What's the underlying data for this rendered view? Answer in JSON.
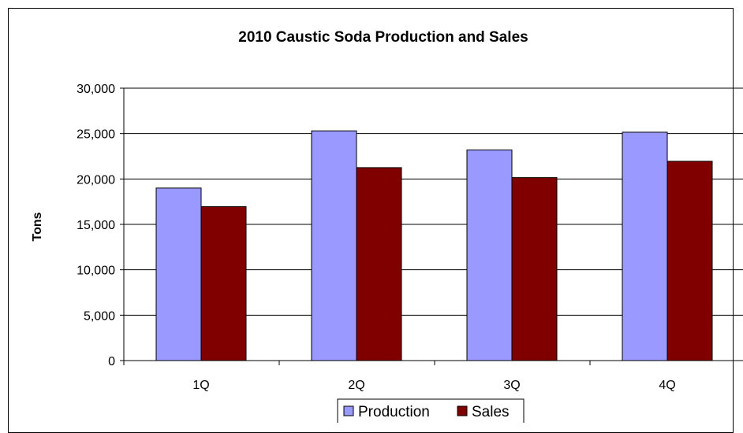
{
  "chart_data": {
    "type": "bar",
    "title": "2010 Caustic Soda Production and Sales",
    "xlabel": "",
    "ylabel": "Tons",
    "categories": [
      "1Q",
      "2Q",
      "3Q",
      "4Q"
    ],
    "series": [
      {
        "name": "Production",
        "values": [
          19000,
          25300,
          23200,
          25150
        ],
        "color": "#9999ff"
      },
      {
        "name": "Sales",
        "values": [
          16950,
          21250,
          20150,
          21950
        ],
        "color": "#800000"
      }
    ],
    "ylim": [
      0,
      30000
    ],
    "yticks": [
      "0",
      "5,000",
      "10,000",
      "15,000",
      "20,000",
      "25,000",
      "30,000"
    ],
    "grid": true,
    "legend_position": "bottom"
  }
}
